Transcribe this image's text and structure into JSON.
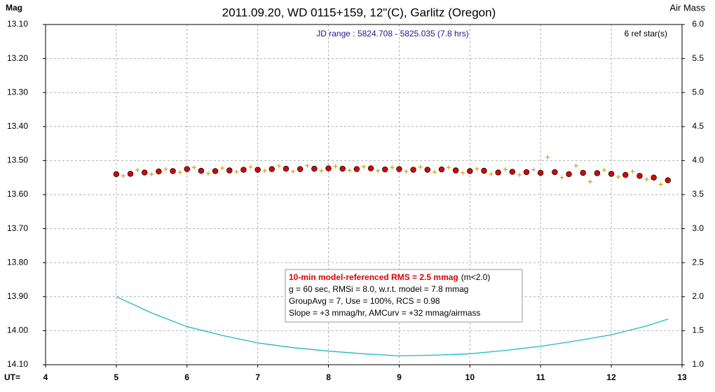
{
  "chart_data": {
    "type": "scatter",
    "title": "2011.09.20, WD 0115+159, 12\"(C), Garlitz (Oregon)",
    "ylabel": "Mag",
    "y2label": "Air Mass",
    "xlabel": "UT=",
    "annotations": {
      "jd_range": "JD range : 5824.708 - 5825.035 (7.8 hrs)",
      "ref_stars": "6 ref star(s)",
      "stats_headline": "10-min model-referenced RMS = 2.5 mmag",
      "stats_note": "(m<2.0)",
      "stats_lines": [
        "g = 60 sec, RMSi = 8.0, w.r.t. model = 7.8 mmag",
        "GroupAvg = 7, Use = 100%, RCS = 0.98",
        "Slope = +3 mmag/hr, AMCurv = +32 mmag/airmass"
      ]
    },
    "xlim": [
      4,
      13
    ],
    "xticks": [
      4,
      5,
      6,
      7,
      8,
      9,
      10,
      11,
      12,
      13
    ],
    "ylim": [
      14.1,
      13.1
    ],
    "yticks": [
      {
        "value": 13.1,
        "label": "13.10"
      },
      {
        "value": 13.2,
        "label": "13.20"
      },
      {
        "value": 13.3,
        "label": "13.30"
      },
      {
        "value": 13.4,
        "label": "13.40"
      },
      {
        "value": 13.5,
        "label": "13.50"
      },
      {
        "value": 13.6,
        "label": "13.60"
      },
      {
        "value": 13.7,
        "label": "13.70"
      },
      {
        "value": 13.8,
        "label": "13.80"
      },
      {
        "value": 13.9,
        "label": "13.90"
      },
      {
        "value": 14.0,
        "label": "14.00"
      },
      {
        "value": 14.1,
        "label": "14.10"
      }
    ],
    "y2lim": [
      1,
      6
    ],
    "y2ticks": [
      {
        "value": 6,
        "label": "6.0"
      },
      {
        "value": 5.5,
        "label": "5.5"
      },
      {
        "value": 5,
        "label": "5.0"
      },
      {
        "value": 4.5,
        "label": "4.5"
      },
      {
        "value": 4,
        "label": "4.0"
      },
      {
        "value": 3.5,
        "label": "3.5"
      },
      {
        "value": 3,
        "label": "3.0"
      },
      {
        "value": 2.5,
        "label": "2.5"
      },
      {
        "value": 2,
        "label": "2.0"
      },
      {
        "value": 1.5,
        "label": "1.5"
      },
      {
        "value": 1,
        "label": "1.0"
      }
    ],
    "grid": true,
    "series": [
      {
        "marker": "cross",
        "color": "#d4a017",
        "x": [
          5.1,
          5.3,
          5.5,
          5.7,
          5.9,
          6.1,
          6.3,
          6.5,
          6.7,
          6.9,
          7.1,
          7.3,
          7.5,
          7.7,
          7.9,
          8.1,
          8.3,
          8.5,
          8.7,
          8.9,
          9.1,
          9.3,
          9.5,
          9.7,
          9.9,
          10.1,
          10.3,
          10.5,
          10.7,
          10.9,
          11.1,
          11.3,
          11.5,
          11.7,
          11.9,
          12.1,
          12.3,
          12.5,
          12.7
        ],
        "values": [
          13.545,
          13.528,
          13.54,
          13.525,
          13.535,
          13.52,
          13.538,
          13.522,
          13.533,
          13.519,
          13.53,
          13.516,
          13.532,
          13.515,
          13.53,
          13.517,
          13.529,
          13.518,
          13.53,
          13.52,
          13.532,
          13.519,
          13.534,
          13.52,
          13.536,
          13.524,
          13.54,
          13.526,
          13.542,
          13.527,
          13.49,
          13.55,
          13.515,
          13.562,
          13.528,
          13.548,
          13.532,
          13.555,
          13.57
        ]
      },
      {
        "marker": "circle",
        "color": "#e00000",
        "x": [
          5.0,
          5.2,
          5.4,
          5.6,
          5.8,
          6.0,
          6.2,
          6.4,
          6.6,
          6.8,
          7.0,
          7.2,
          7.4,
          7.6,
          7.8,
          8.0,
          8.2,
          8.4,
          8.6,
          8.8,
          9.0,
          9.2,
          9.4,
          9.6,
          9.8,
          10.0,
          10.2,
          10.4,
          10.6,
          10.8,
          11.0,
          11.2,
          11.4,
          11.6,
          11.8,
          12.0,
          12.2,
          12.4,
          12.6,
          12.8
        ],
        "values": [
          13.54,
          13.539,
          13.535,
          13.532,
          13.531,
          13.525,
          13.53,
          13.531,
          13.529,
          13.527,
          13.527,
          13.525,
          13.524,
          13.525,
          13.524,
          13.523,
          13.524,
          13.525,
          13.523,
          13.526,
          13.525,
          13.527,
          13.527,
          13.526,
          13.529,
          13.531,
          13.53,
          13.535,
          13.533,
          13.534,
          13.536,
          13.534,
          13.54,
          13.536,
          13.537,
          13.539,
          13.542,
          13.545,
          13.55,
          13.558
        ]
      },
      {
        "marker": "line",
        "color": "#20b8c8",
        "axis": "y2",
        "x": [
          5.0,
          5.5,
          6.0,
          6.5,
          7.0,
          7.5,
          8.0,
          8.5,
          9.0,
          9.5,
          10.0,
          10.5,
          11.0,
          11.5,
          12.0,
          12.5,
          12.8
        ],
        "values": [
          2.0,
          1.76,
          1.56,
          1.43,
          1.32,
          1.25,
          1.2,
          1.16,
          1.13,
          1.14,
          1.16,
          1.21,
          1.27,
          1.35,
          1.44,
          1.57,
          1.67
        ]
      }
    ]
  }
}
